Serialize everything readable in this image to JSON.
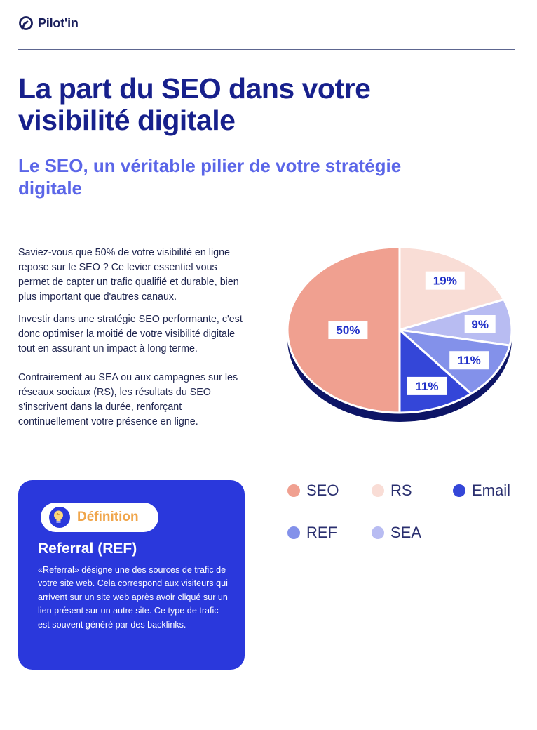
{
  "header": {
    "logo_text": "Pilot'in"
  },
  "title": "La part du SEO dans votre visibilité digitale",
  "subtitle": "Le SEO, un véritable pilier de votre stratégie digitale",
  "body": {
    "p1": "Saviez-vous que 50% de votre visibilité en ligne repose sur le SEO ? Ce levier essentiel vous permet de capter un trafic qualifié et durable, bien plus important que d'autres canaux.",
    "p2": "Investir dans une stratégie SEO performante, c'est donc optimiser la moitié de votre visibilité digitale tout en assurant un impact à long terme.",
    "p3": "Contrairement au SEA ou aux campagnes sur les réseaux sociaux (RS), les résultats du SEO s'inscrivent dans la durée, renforçant continuellement votre présence en ligne."
  },
  "definition": {
    "badge": "Définition",
    "term": "Referral (REF)",
    "text": "«Referral» désigne une des sources de trafic de votre site web. Cela correspond aux visiteurs qui arrivent sur un site web après avoir cliqué sur un lien présent sur un autre site. Ce type de trafic est souvent généré par des backlinks.",
    "badge_icon": "lightbulb-icon"
  },
  "chart_data": {
    "type": "pie",
    "style": "3d",
    "legend_placement": "bottom-right",
    "series": [
      {
        "name": "SEO",
        "value": 50,
        "label": "50%",
        "color": "#f0a090"
      },
      {
        "name": "RS",
        "value": 19,
        "label": "19%",
        "color": "#f9ddd6"
      },
      {
        "name": "SEA",
        "value": 9,
        "label": "9%",
        "color": "#b8bcf2"
      },
      {
        "name": "REF",
        "value": 11,
        "label": "11%",
        "color": "#8391ea"
      },
      {
        "name": "Email",
        "value": 11,
        "label": "11%",
        "color": "#3446d8"
      }
    ],
    "legend_order": [
      "SEO",
      "RS",
      "Email",
      "REF",
      "SEA"
    ],
    "depth_color": "#0d1566"
  },
  "colors": {
    "title": "#17208c",
    "subtitle": "#5b66e8",
    "card": "#2a38dc",
    "badge_text": "#f0a54a"
  }
}
